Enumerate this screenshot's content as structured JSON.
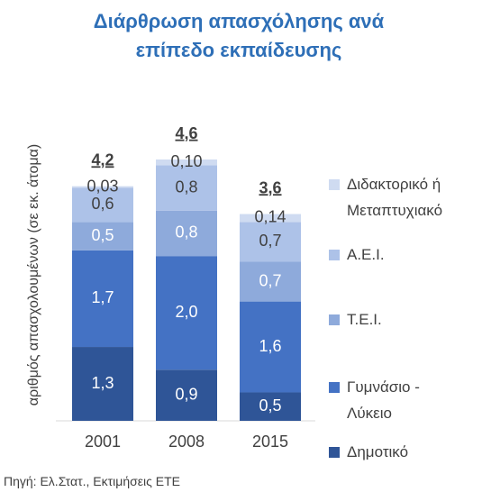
{
  "chart_data": {
    "type": "stacked_bar",
    "title": "Διάρθρωση απασχόλησης ανά επίπεδο εκπαίδευσης",
    "y_label": "αριθμός απασχολουμένων (σε εκ. άτομα)",
    "source": "Πηγή: Ελ.Στατ., Εκτιμήσεις ΕΤΕ",
    "categories": [
      "2001",
      "2008",
      "2015"
    ],
    "total_labels": [
      "4,2",
      "4,6",
      "3,6"
    ],
    "series": [
      {
        "name": "Δημοτικό",
        "color": "#2f5597",
        "values": [
          1.3,
          0.9,
          0.5
        ],
        "value_labels": [
          "1,3",
          "0,9",
          "0,5"
        ]
      },
      {
        "name": "Γυμνάσιο - Λύκειο",
        "color": "#4472c4",
        "values": [
          1.7,
          2.0,
          1.6
        ],
        "value_labels": [
          "1,7",
          "2,0",
          "1,6"
        ]
      },
      {
        "name": "Τ.Ε.Ι.",
        "color": "#8eaadb",
        "values": [
          0.5,
          0.8,
          0.7
        ],
        "value_labels": [
          "0,5",
          "0,8",
          "0,7"
        ]
      },
      {
        "name": "Α.Ε.Ι.",
        "color": "#adc2e8",
        "values": [
          0.6,
          0.8,
          0.7
        ],
        "value_labels": [
          "0,6",
          "0,8",
          "0,7"
        ]
      },
      {
        "name": "Διδακτορικό ή Μεταπτυχιακό",
        "color": "#cfdbf1",
        "values": [
          0.03,
          0.1,
          0.14
        ],
        "value_labels": [
          "0,03",
          "0,10",
          "0,14"
        ]
      }
    ],
    "legend": "right"
  }
}
